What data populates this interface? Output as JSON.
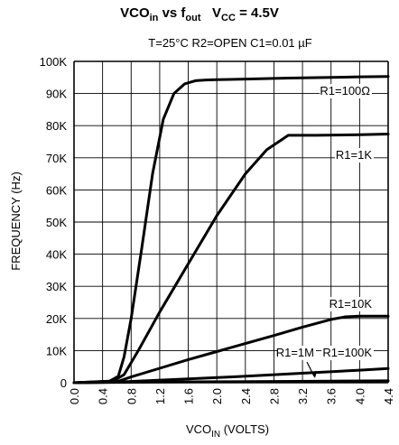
{
  "chart_data": {
    "type": "line",
    "title_parts": {
      "a": "VCO",
      "a_sub": "in",
      "b": " vs f",
      "b_sub": "out",
      "c": "   V",
      "c_sub": "CC",
      "d": " = 4.5V"
    },
    "conditions": "T=25°C   R2=OPEN   C1=0.01 µF",
    "ylabel": "FREQUENCY (Hz)",
    "xlabel": {
      "main": "VCO",
      "sub": "IN",
      "rest": " (VOLTS)"
    },
    "xlim": [
      0,
      4.4
    ],
    "ylim": [
      0,
      100000
    ],
    "x_ticks": [
      "0.0",
      "0.4",
      "0.8",
      "1.2",
      "1.6",
      "2.0",
      "2.4",
      "2.8",
      "3.2",
      "3.6",
      "4.0",
      "4.4"
    ],
    "y_ticks": [
      "0",
      "10K",
      "20K",
      "30K",
      "40K",
      "50K",
      "60K",
      "70K",
      "80K",
      "90K",
      "100K"
    ],
    "grid": true,
    "series": [
      {
        "name": "R1=100Ω",
        "x": [
          0,
          0.5,
          0.62,
          0.7,
          0.8,
          0.95,
          1.1,
          1.25,
          1.4,
          1.55,
          1.7,
          1.85,
          2.0,
          2.4,
          3.0,
          3.6,
          4.0,
          4.4
        ],
        "y": [
          0,
          500,
          2000,
          8000,
          20000,
          42000,
          65000,
          82000,
          90000,
          93000,
          94000,
          94200,
          94300,
          94500,
          94800,
          95000,
          95200,
          95300
        ]
      },
      {
        "name": "R1=1K",
        "x": [
          0,
          0.55,
          0.7,
          0.9,
          1.2,
          1.6,
          2.0,
          2.4,
          2.7,
          2.9,
          3.0,
          3.4,
          4.0,
          4.4
        ],
        "y": [
          0,
          500,
          2500,
          10000,
          22000,
          37000,
          52000,
          65000,
          72500,
          75500,
          77000,
          77000,
          77200,
          77400
        ]
      },
      {
        "name": "R1=10K",
        "x": [
          0,
          0.6,
          0.8,
          1.2,
          1.6,
          2.0,
          2.4,
          2.8,
          3.2,
          3.6,
          3.8,
          4.0,
          4.4
        ],
        "y": [
          0,
          300,
          1800,
          4500,
          7200,
          9700,
          12200,
          14700,
          17300,
          19700,
          20500,
          20700,
          20700
        ]
      },
      {
        "name": "R1=100K",
        "x": [
          0,
          0.6,
          1.0,
          1.6,
          2.2,
          2.8,
          3.4,
          4.0,
          4.4
        ],
        "y": [
          0,
          200,
          600,
          1200,
          1800,
          2500,
          3200,
          3900,
          4400
        ]
      },
      {
        "name": "R1=1M",
        "x": [
          0,
          0.6,
          1.2,
          2.0,
          2.8,
          3.6,
          4.4
        ],
        "y": [
          0,
          100,
          200,
          300,
          400,
          500,
          600
        ]
      }
    ]
  }
}
